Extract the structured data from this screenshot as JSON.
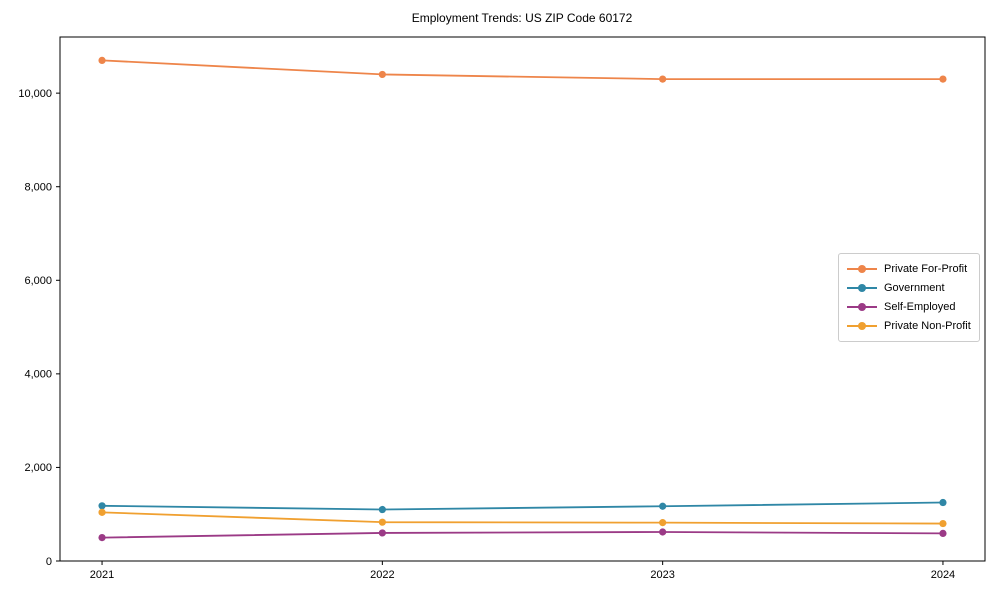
{
  "chart_data": {
    "type": "line",
    "title": "Employment Trends: US ZIP Code 60172",
    "x": [
      "2021",
      "2022",
      "2023",
      "2024"
    ],
    "series": [
      {
        "name": "Private For-Profit",
        "color": "#EE854A",
        "values": [
          10700,
          10400,
          10300,
          10300
        ]
      },
      {
        "name": "Government",
        "color": "#2F87A6",
        "values": [
          1180,
          1100,
          1170,
          1250
        ]
      },
      {
        "name": "Self-Employed",
        "color": "#9B3A86",
        "values": [
          500,
          600,
          620,
          590
        ]
      },
      {
        "name": "Private Non-Profit",
        "color": "#F0A030",
        "values": [
          1040,
          830,
          820,
          800
        ]
      }
    ],
    "xlabel": "",
    "ylabel": "",
    "ylim": [
      0,
      11200
    ],
    "y_ticks": [
      0,
      2000,
      4000,
      6000,
      8000,
      10000
    ],
    "y_tick_labels": [
      "0",
      "2,000",
      "4,000",
      "6,000",
      "8,000",
      "10,000"
    ],
    "grid": false,
    "legend_position": "center-right",
    "axis_color": "#000000",
    "tick_label_color": "#000000"
  }
}
